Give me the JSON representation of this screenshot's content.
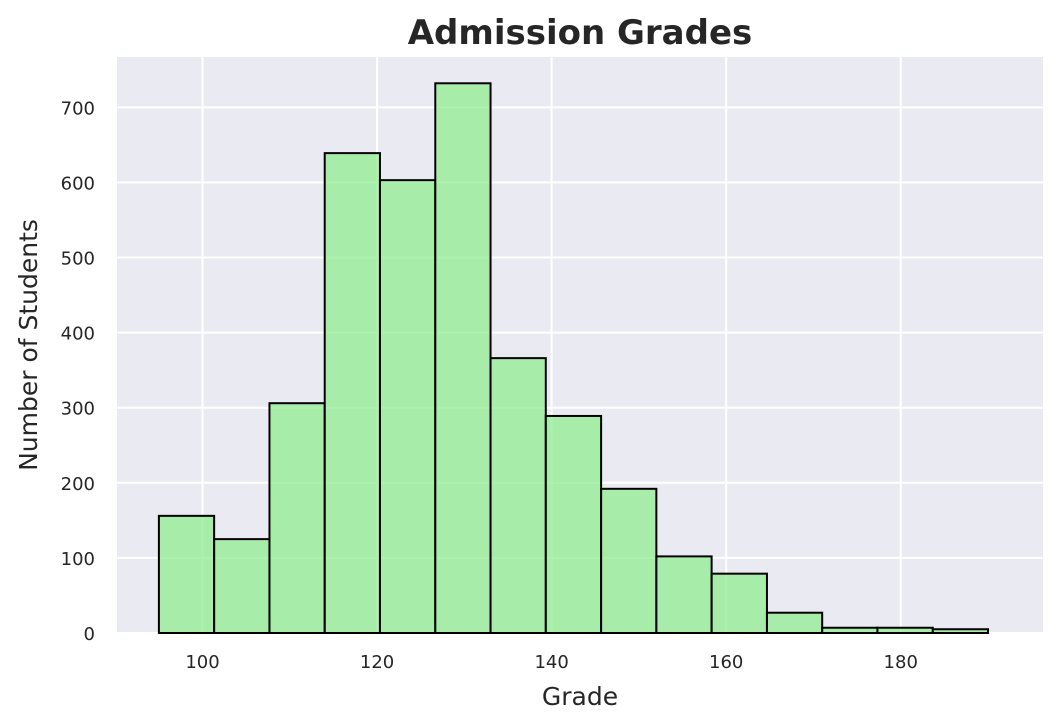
{
  "chart_data": {
    "type": "bar",
    "title": "Admission Grades",
    "xlabel": "Grade",
    "ylabel": "Number of Students",
    "bin_edges": [
      95.0,
      101.33,
      107.67,
      114.0,
      120.33,
      126.67,
      133.0,
      139.33,
      145.67,
      152.0,
      158.33,
      164.67,
      171.0,
      177.33,
      183.67,
      190.0
    ],
    "values": [
      156,
      125,
      306,
      639,
      603,
      732,
      366,
      289,
      192,
      102,
      79,
      27,
      7,
      7,
      5
    ],
    "xlim": [
      90.2,
      196.3
    ],
    "ylim": [
      0,
      767
    ],
    "xticks": [
      100,
      120,
      140,
      160,
      180
    ],
    "yticks": [
      0,
      100,
      200,
      300,
      400,
      500,
      600,
      700
    ],
    "grid": true,
    "colors": {
      "bar_fill": "#90ee90",
      "bar_edge": "#000000",
      "plot_background": "#eaeaf2",
      "grid": "#ffffff",
      "text": "#262626"
    }
  }
}
